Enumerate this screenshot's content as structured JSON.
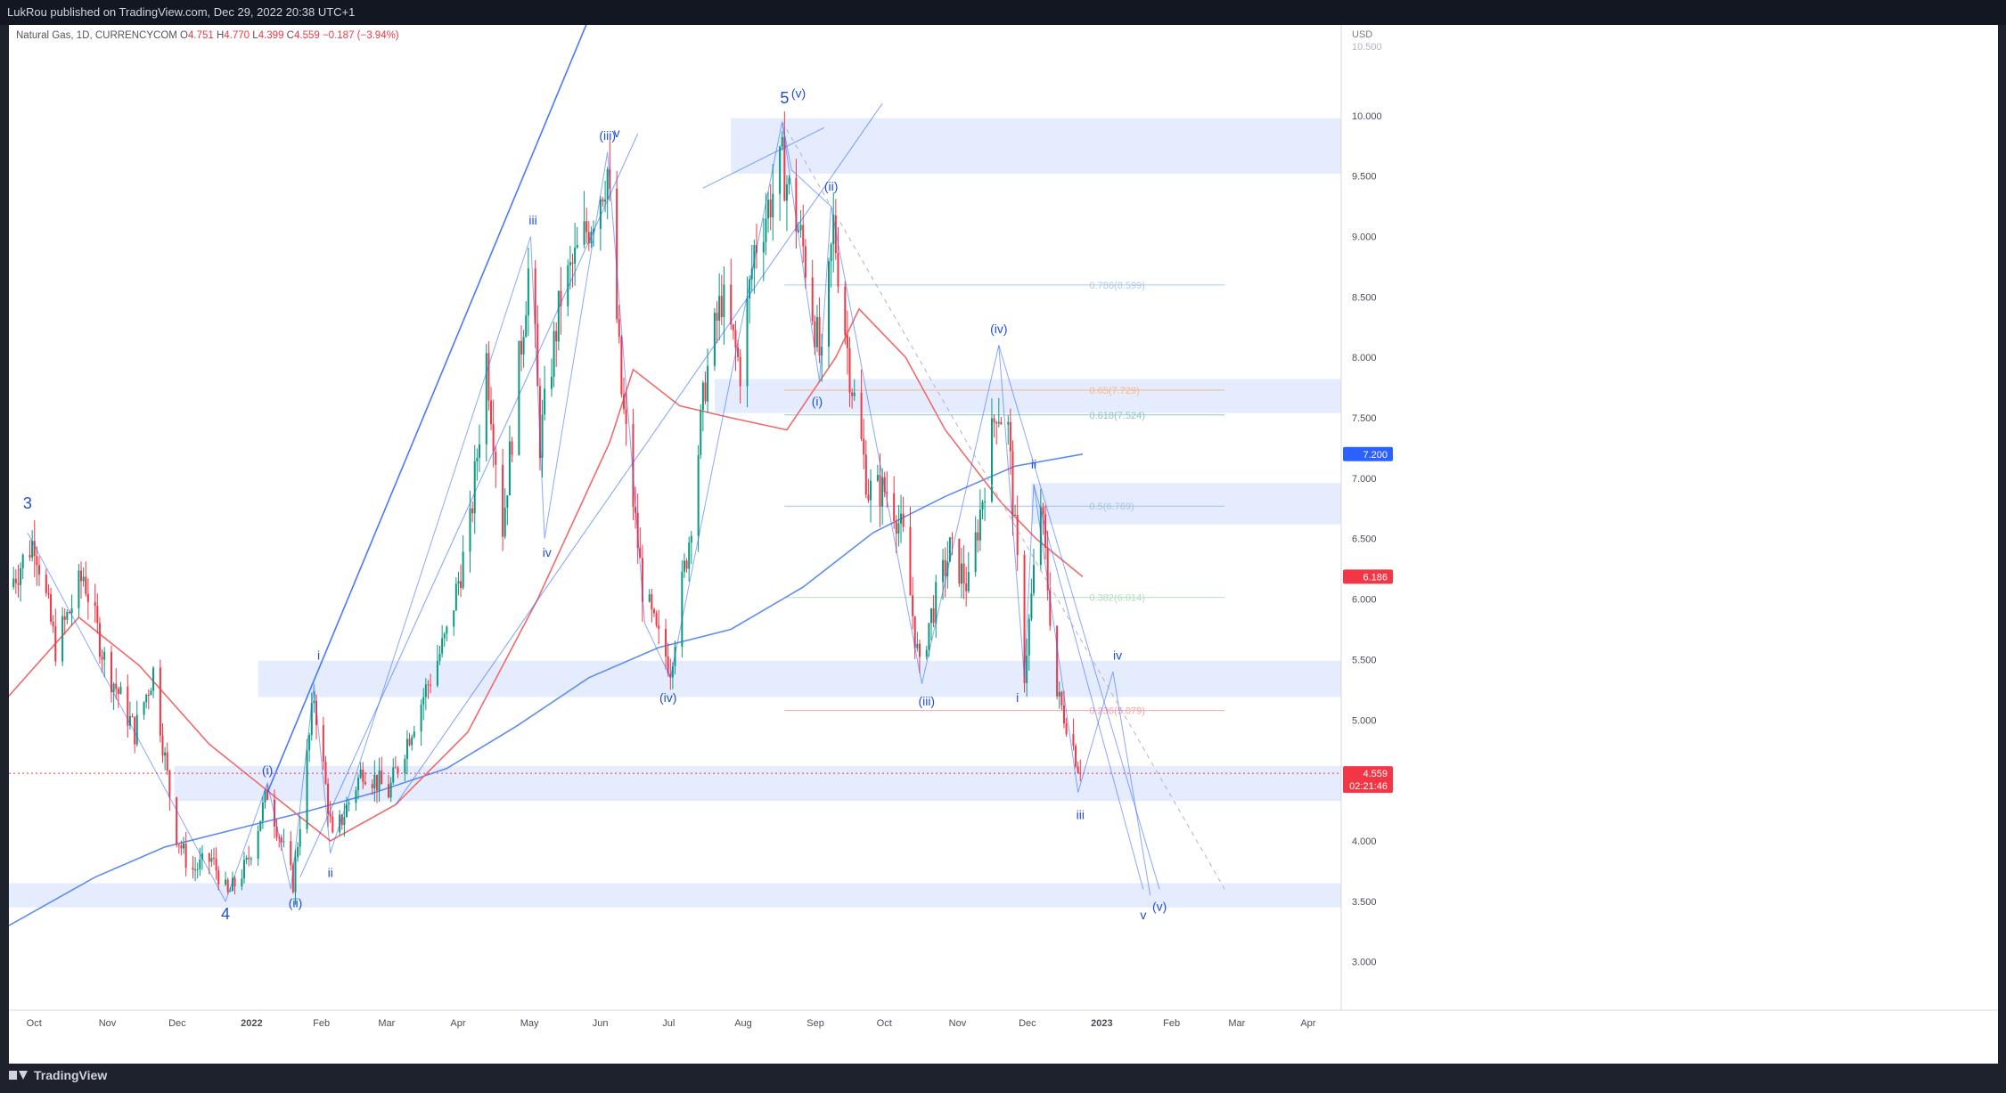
{
  "header": {
    "publisher": "LukRou published on TradingView.com, Dec 29, 2022 20:38 UTC+1"
  },
  "legend": {
    "symbol": "Natural Gas, 1D, CURRENCYCOM",
    "o_label": "O",
    "o": "4.751",
    "h_label": "H",
    "h": "4.770",
    "l_label": "L",
    "l": "4.399",
    "c_label": "C",
    "c": "4.559",
    "change": "−0.187 (−3.94%)"
  },
  "footer": {
    "brand": "TradingView"
  },
  "colors": {
    "up": "#089981",
    "down": "#f23645",
    "ma_short": "#f06a6a",
    "ma_long": "#5b8def",
    "wave": "#2962ff",
    "zone": "#dbe6fd"
  },
  "chart_data": {
    "type": "candlestick",
    "currency": "USD",
    "ylim": [
      2.6,
      10.75
    ],
    "y_ticks": [
      "3.000",
      "3.500",
      "4.000",
      "4.500",
      "5.000",
      "5.500",
      "6.000",
      "6.500",
      "7.000",
      "7.500",
      "8.000",
      "8.500",
      "9.000",
      "9.500",
      "10.000"
    ],
    "y_tick_top": "10.500",
    "x_ticks": [
      {
        "label": "Oct",
        "date": "2021-10-01"
      },
      {
        "label": "Nov",
        "date": "2021-11-01"
      },
      {
        "label": "Dec",
        "date": "2021-12-01"
      },
      {
        "label": "2022",
        "date": "2022-01-01"
      },
      {
        "label": "Feb",
        "date": "2022-02-01"
      },
      {
        "label": "Mar",
        "date": "2022-03-01"
      },
      {
        "label": "Apr",
        "date": "2022-04-01"
      },
      {
        "label": "May",
        "date": "2022-05-01"
      },
      {
        "label": "Jun",
        "date": "2022-06-01"
      },
      {
        "label": "Jul",
        "date": "2022-07-01"
      },
      {
        "label": "Aug",
        "date": "2022-08-01"
      },
      {
        "label": "Sep",
        "date": "2022-09-01"
      },
      {
        "label": "Oct",
        "date": "2022-10-01"
      },
      {
        "label": "Nov",
        "date": "2022-11-01"
      },
      {
        "label": "Dec",
        "date": "2022-12-01"
      },
      {
        "label": "2023",
        "date": "2023-01-01"
      },
      {
        "label": "Feb",
        "date": "2023-02-01"
      },
      {
        "label": "Mar",
        "date": "2023-03-01"
      },
      {
        "label": "Apr",
        "date": "2023-04-01"
      }
    ],
    "x_range": [
      "2021-09-25",
      "2023-04-20"
    ],
    "price_path": [
      [
        "2021-09-25",
        6.1
      ],
      [
        "2021-10-06",
        6.5
      ],
      [
        "2021-10-15",
        5.6
      ],
      [
        "2021-10-27",
        6.2
      ],
      [
        "2021-11-05",
        5.5
      ],
      [
        "2021-11-18",
        4.9
      ],
      [
        "2021-11-26",
        5.4
      ],
      [
        "2021-12-05",
        4.1
      ],
      [
        "2021-12-12",
        3.75
      ],
      [
        "2021-12-21",
        3.85
      ],
      [
        "2021-12-28",
        3.55
      ],
      [
        "2022-01-05",
        3.8
      ],
      [
        "2022-01-14",
        4.4
      ],
      [
        "2022-01-25",
        3.65
      ],
      [
        "2022-02-03",
        5.2
      ],
      [
        "2022-02-11",
        4.0
      ],
      [
        "2022-02-24",
        4.6
      ],
      [
        "2022-03-07",
        4.4
      ],
      [
        "2022-03-18",
        5.0
      ],
      [
        "2022-04-01",
        5.7
      ],
      [
        "2022-04-11",
        6.6
      ],
      [
        "2022-04-18",
        8.0
      ],
      [
        "2022-04-25",
        6.6
      ],
      [
        "2022-05-07",
        8.9
      ],
      [
        "2022-05-11",
        7.3
      ],
      [
        "2022-05-20",
        8.5
      ],
      [
        "2022-06-01",
        9.1
      ],
      [
        "2022-06-09",
        9.55
      ],
      [
        "2022-06-15",
        7.7
      ],
      [
        "2022-06-24",
        6.1
      ],
      [
        "2022-06-30",
        5.7
      ],
      [
        "2022-07-06",
        5.45
      ],
      [
        "2022-07-14",
        6.5
      ],
      [
        "2022-07-21",
        7.8
      ],
      [
        "2022-07-28",
        8.5
      ],
      [
        "2022-08-05",
        7.9
      ],
      [
        "2022-08-11",
        8.9
      ],
      [
        "2022-08-23",
        9.6
      ],
      [
        "2022-09-01",
        8.9
      ],
      [
        "2022-09-09",
        7.9
      ],
      [
        "2022-09-14",
        9.1
      ],
      [
        "2022-09-21",
        7.9
      ],
      [
        "2022-09-29",
        6.9
      ],
      [
        "2022-10-08",
        6.9
      ],
      [
        "2022-10-14",
        6.5
      ],
      [
        "2022-10-21",
        5.4
      ],
      [
        "2022-10-25",
        5.8
      ],
      [
        "2022-11-03",
        6.4
      ],
      [
        "2022-11-11",
        6.1
      ],
      [
        "2022-11-23",
        7.6
      ],
      [
        "2022-11-28",
        7.4
      ],
      [
        "2022-12-05",
        5.4
      ],
      [
        "2022-12-12",
        6.8
      ],
      [
        "2022-12-19",
        5.2
      ],
      [
        "2022-12-23",
        5.0
      ],
      [
        "2022-12-29",
        4.56
      ]
    ],
    "ma_short": [
      [
        "2021-09-25",
        5.2
      ],
      [
        "2021-10-25",
        5.85
      ],
      [
        "2021-11-20",
        5.45
      ],
      [
        "2021-12-20",
        4.8
      ],
      [
        "2022-01-15",
        4.4
      ],
      [
        "2022-02-10",
        4.0
      ],
      [
        "2022-03-10",
        4.3
      ],
      [
        "2022-04-10",
        4.9
      ],
      [
        "2022-05-10",
        6.0
      ],
      [
        "2022-06-10",
        7.3
      ],
      [
        "2022-06-20",
        7.9
      ],
      [
        "2022-07-10",
        7.6
      ],
      [
        "2022-08-01",
        7.5
      ],
      [
        "2022-08-25",
        7.4
      ],
      [
        "2022-09-15",
        8.0
      ],
      [
        "2022-09-25",
        8.4
      ],
      [
        "2022-10-15",
        8.0
      ],
      [
        "2022-11-01",
        7.4
      ],
      [
        "2022-11-25",
        6.8
      ],
      [
        "2022-12-10",
        6.5
      ],
      [
        "2022-12-30",
        6.186
      ]
    ],
    "ma_long": [
      [
        "2021-09-25",
        3.3
      ],
      [
        "2021-11-01",
        3.7
      ],
      [
        "2021-12-01",
        3.95
      ],
      [
        "2022-01-01",
        4.1
      ],
      [
        "2022-02-01",
        4.25
      ],
      [
        "2022-03-01",
        4.4
      ],
      [
        "2022-04-01",
        4.6
      ],
      [
        "2022-05-01",
        4.95
      ],
      [
        "2022-06-01",
        5.35
      ],
      [
        "2022-07-01",
        5.6
      ],
      [
        "2022-08-01",
        5.75
      ],
      [
        "2022-09-01",
        6.1
      ],
      [
        "2022-10-01",
        6.55
      ],
      [
        "2022-11-01",
        6.85
      ],
      [
        "2022-12-01",
        7.1
      ],
      [
        "2022-12-30",
        7.2
      ]
    ],
    "current_price": {
      "value": "4.559",
      "countdown": "02:21:46"
    },
    "price_badges": [
      {
        "value": "7.200",
        "color": "#2962ff",
        "y": 7.2
      },
      {
        "value": "6.186",
        "color": "#f23645",
        "y": 6.186
      }
    ],
    "fib_levels": [
      {
        "label": "0.786(8.599)",
        "y": 8.599,
        "color": "#a9cbe8"
      },
      {
        "label": "0.65(7.729)",
        "y": 7.729,
        "color": "#f5b98a"
      },
      {
        "label": "0.618(7.524)",
        "y": 7.524,
        "color": "#8fc7c0"
      },
      {
        "label": "0.5(6.769)",
        "y": 6.769,
        "color": "#a6c4e4"
      },
      {
        "label": "0.382(6.014)",
        "y": 6.014,
        "color": "#b4dcc0"
      },
      {
        "label": "0.236(5.079)",
        "y": 5.079,
        "color": "#f4a3a8"
      }
    ],
    "zones": [
      {
        "x0": "2022-08-01",
        "x1": "2023-04-20",
        "y0": 9.52,
        "y1": 9.98
      },
      {
        "x0": "2022-07-25",
        "x1": "2023-04-20",
        "y0": 7.54,
        "y1": 7.82
      },
      {
        "x0": "2022-12-08",
        "x1": "2023-04-20",
        "y0": 6.62,
        "y1": 6.96
      },
      {
        "x0": "2022-01-10",
        "x1": "2023-04-20",
        "y0": 5.19,
        "y1": 5.49
      },
      {
        "x0": "2021-12-05",
        "x1": "2023-04-20",
        "y0": 4.33,
        "y1": 4.62
      },
      {
        "x0": "2021-09-25",
        "x1": "2023-04-20",
        "y0": 3.45,
        "y1": 3.65
      }
    ],
    "wave_labels": [
      {
        "text": "3",
        "date": "2021-10-03",
        "y": 6.75,
        "big": true
      },
      {
        "text": "4",
        "date": "2021-12-27",
        "y": 3.35,
        "big": true
      },
      {
        "text": "5",
        "date": "2022-08-24",
        "y": 10.1,
        "big": true
      },
      {
        "text": "(i)",
        "date": "2022-01-14",
        "y": 4.55
      },
      {
        "text": "(ii)",
        "date": "2022-01-26",
        "y": 3.45
      },
      {
        "text": "i",
        "date": "2022-02-05",
        "y": 5.5
      },
      {
        "text": "ii",
        "date": "2022-02-10",
        "y": 3.7
      },
      {
        "text": "iii",
        "date": "2022-05-08",
        "y": 9.1
      },
      {
        "text": "iv",
        "date": "2022-05-14",
        "y": 6.35
      },
      {
        "text": "(iii)",
        "date": "2022-06-09",
        "y": 9.8
      },
      {
        "text": "v",
        "date": "2022-06-13",
        "y": 9.82
      },
      {
        "text": "(iv)",
        "date": "2022-07-05",
        "y": 5.15
      },
      {
        "text": "(v)",
        "date": "2022-08-30",
        "y": 10.15
      },
      {
        "text": "(ii)",
        "date": "2022-09-13",
        "y": 9.38
      },
      {
        "text": "(i)",
        "date": "2022-09-07",
        "y": 7.6
      },
      {
        "text": "(iii)",
        "date": "2022-10-24",
        "y": 5.12
      },
      {
        "text": "(iv)",
        "date": "2022-11-24",
        "y": 8.2
      },
      {
        "text": "ii",
        "date": "2022-12-09",
        "y": 7.08
      },
      {
        "text": "i",
        "date": "2022-12-02",
        "y": 5.15
      },
      {
        "text": "iii",
        "date": "2022-12-29",
        "y": 4.18
      },
      {
        "text": "iv",
        "date": "2023-01-14",
        "y": 5.5
      },
      {
        "text": "v",
        "date": "2023-01-25",
        "y": 3.35
      },
      {
        "text": "(v)",
        "date": "2023-02-01",
        "y": 3.42
      }
    ],
    "wave_lines": [
      [
        [
          "2021-10-03",
          6.55
        ],
        [
          "2021-12-27",
          3.5
        ]
      ],
      [
        [
          "2021-12-27",
          3.5
        ],
        [
          "2022-01-14",
          4.48
        ],
        [
          "2022-01-24",
          3.6
        ],
        [
          "2022-02-03",
          5.3
        ],
        [
          "2022-02-10",
          3.9
        ]
      ],
      [
        [
          "2022-02-10",
          3.9
        ],
        [
          "2022-05-07",
          9.0
        ],
        [
          "2022-05-13",
          6.5
        ],
        [
          "2022-06-09",
          9.7
        ],
        [
          "2022-06-25",
          5.8
        ]
      ],
      [
        [
          "2022-06-25",
          5.8
        ],
        [
          "2022-07-06",
          5.35
        ],
        [
          "2022-08-23",
          9.95
        ],
        [
          "2022-08-27",
          9.55
        ],
        [
          "2022-09-13",
          9.25
        ]
      ],
      [
        [
          "2022-08-23",
          9.95
        ],
        [
          "2022-09-08",
          7.8
        ],
        [
          "2022-09-13",
          9.25
        ],
        [
          "2022-10-22",
          5.3
        ],
        [
          "2022-11-24",
          8.1
        ]
      ],
      [
        [
          "2022-11-24",
          8.1
        ],
        [
          "2022-12-05",
          5.35
        ],
        [
          "2022-12-09",
          6.95
        ],
        [
          "2022-12-28",
          4.4
        ],
        [
          "2023-01-12",
          5.4
        ],
        [
          "2023-01-28",
          3.55
        ]
      ],
      [
        [
          "2022-11-24",
          8.1
        ],
        [
          "2023-02-01",
          3.6
        ]
      ],
      [
        [
          "2022-12-09",
          6.95
        ],
        [
          "2023-01-25",
          3.6
        ]
      ]
    ],
    "channel_lines": [
      [
        [
          "2022-01-14",
          4.4
        ],
        [
          "2022-06-16",
          11.5
        ]
      ],
      [
        [
          "2022-01-28",
          3.7
        ],
        [
          "2022-06-22",
          9.85
        ]
      ],
      [
        [
          "2022-03-10",
          4.3
        ],
        [
          "2022-10-05",
          10.1
        ]
      ],
      [
        [
          "2022-07-20",
          9.4
        ],
        [
          "2022-09-10",
          9.9
        ]
      ]
    ],
    "dashed_trend": [
      [
        "2022-08-23",
        9.95
      ],
      [
        "2023-03-01",
        3.6
      ]
    ]
  }
}
